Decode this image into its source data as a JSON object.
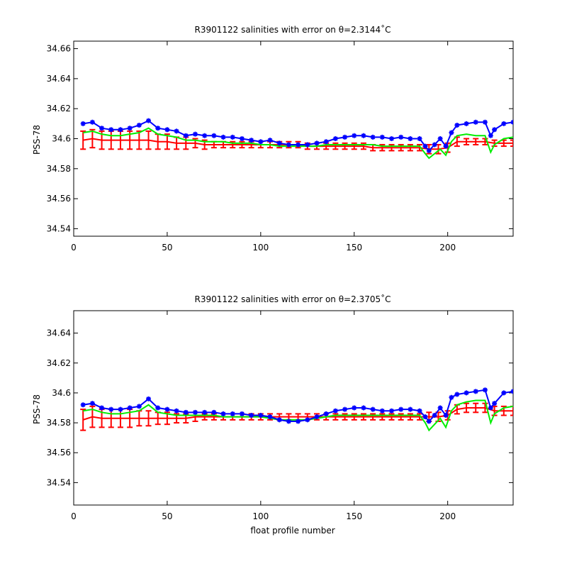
{
  "chart_data": [
    {
      "type": "line",
      "title": "R3901122 salinities with error on θ=2.3144˚C",
      "xlabel": "",
      "ylabel": "PSS-78",
      "xlim": [
        0,
        235
      ],
      "ylim": [
        34.535,
        34.665
      ],
      "xticks": [
        "0",
        "50",
        "100",
        "150",
        "200"
      ],
      "yticks": [
        "34.54",
        "34.56",
        "34.58",
        "34.6",
        "34.62",
        "34.64",
        "34.66"
      ],
      "grid": false,
      "series": [
        {
          "color": "#0000ff",
          "marker": "star",
          "x": [
            5,
            10,
            15,
            20,
            25,
            30,
            35,
            40,
            45,
            50,
            55,
            60,
            65,
            70,
            75,
            80,
            85,
            90,
            95,
            100,
            105,
            110,
            115,
            120,
            125,
            130,
            135,
            140,
            145,
            150,
            155,
            160,
            165,
            170,
            175,
            180,
            185,
            188,
            190,
            193,
            196,
            199,
            202,
            205,
            210,
            215,
            220,
            223,
            225,
            230,
            235
          ],
          "values": [
            34.61,
            34.611,
            34.607,
            34.606,
            34.606,
            34.607,
            34.609,
            34.612,
            34.607,
            34.606,
            34.605,
            34.602,
            34.603,
            34.602,
            34.602,
            34.601,
            34.601,
            34.6,
            34.599,
            34.598,
            34.599,
            34.597,
            34.596,
            34.596,
            34.596,
            34.597,
            34.598,
            34.6,
            34.601,
            34.602,
            34.602,
            34.601,
            34.601,
            34.6,
            34.601,
            34.6,
            34.6,
            34.595,
            34.592,
            34.596,
            34.6,
            34.595,
            34.604,
            34.609,
            34.61,
            34.611,
            34.611,
            34.602,
            34.606,
            34.61,
            34.611
          ]
        },
        {
          "color": "#00ee00",
          "marker": "",
          "x": [
            5,
            10,
            15,
            20,
            25,
            30,
            35,
            40,
            45,
            50,
            55,
            60,
            65,
            70,
            75,
            80,
            85,
            90,
            95,
            100,
            105,
            110,
            115,
            120,
            125,
            130,
            135,
            140,
            145,
            150,
            155,
            160,
            165,
            170,
            175,
            180,
            185,
            188,
            190,
            193,
            196,
            199,
            202,
            205,
            210,
            215,
            220,
            223,
            225,
            230,
            235
          ],
          "values": [
            34.604,
            34.605,
            34.603,
            34.602,
            34.602,
            34.603,
            34.604,
            34.607,
            34.603,
            34.602,
            34.601,
            34.599,
            34.599,
            34.598,
            34.598,
            34.598,
            34.597,
            34.597,
            34.597,
            34.596,
            34.596,
            34.595,
            34.595,
            34.595,
            34.595,
            34.595,
            34.596,
            34.596,
            34.596,
            34.596,
            34.596,
            34.596,
            34.595,
            34.595,
            34.595,
            34.595,
            34.595,
            34.59,
            34.587,
            34.59,
            34.593,
            34.589,
            34.598,
            34.602,
            34.603,
            34.602,
            34.602,
            34.591,
            34.596,
            34.6,
            34.601
          ]
        },
        {
          "color": "#ff0000",
          "marker": "errorbar",
          "x": [
            5,
            10,
            15,
            20,
            25,
            30,
            35,
            40,
            45,
            50,
            55,
            60,
            65,
            70,
            75,
            80,
            85,
            90,
            95,
            100,
            105,
            110,
            115,
            120,
            125,
            130,
            135,
            140,
            145,
            150,
            155,
            160,
            165,
            170,
            175,
            180,
            185,
            190,
            195,
            200,
            205,
            210,
            215,
            220,
            225,
            230,
            235
          ],
          "values": [
            34.599,
            34.6,
            34.599,
            34.599,
            34.599,
            34.599,
            34.599,
            34.599,
            34.598,
            34.598,
            34.597,
            34.597,
            34.597,
            34.596,
            34.596,
            34.596,
            34.596,
            34.596,
            34.596,
            34.596,
            34.596,
            34.596,
            34.596,
            34.596,
            34.595,
            34.595,
            34.595,
            34.595,
            34.595,
            34.595,
            34.595,
            34.594,
            34.594,
            34.594,
            34.594,
            34.594,
            34.594,
            34.593,
            34.593,
            34.594,
            34.598,
            34.598,
            34.598,
            34.598,
            34.597,
            34.597,
            34.597
          ],
          "errors": [
            0.006,
            0.006,
            0.006,
            0.006,
            0.006,
            0.006,
            0.006,
            0.006,
            0.005,
            0.005,
            0.004,
            0.004,
            0.003,
            0.003,
            0.002,
            0.002,
            0.002,
            0.002,
            0.002,
            0.002,
            0.002,
            0.002,
            0.002,
            0.002,
            0.002,
            0.002,
            0.002,
            0.002,
            0.002,
            0.002,
            0.002,
            0.002,
            0.002,
            0.002,
            0.002,
            0.002,
            0.002,
            0.003,
            0.003,
            0.003,
            0.003,
            0.002,
            0.002,
            0.002,
            0.002,
            0.002,
            0.002
          ]
        }
      ]
    },
    {
      "type": "line",
      "title": "R3901122 salinities with error on θ=2.3705˚C",
      "xlabel": "float profile number",
      "ylabel": "PSS-78",
      "xlim": [
        0,
        235
      ],
      "ylim": [
        34.525,
        34.655
      ],
      "xticks": [
        "0",
        "50",
        "100",
        "150",
        "200"
      ],
      "yticks": [
        "34.54",
        "34.56",
        "34.58",
        "34.6",
        "34.62",
        "34.64"
      ],
      "grid": false,
      "series": [
        {
          "color": "#0000ff",
          "marker": "star",
          "x": [
            5,
            10,
            15,
            20,
            25,
            30,
            35,
            40,
            45,
            50,
            55,
            60,
            65,
            70,
            75,
            80,
            85,
            90,
            95,
            100,
            105,
            110,
            115,
            120,
            125,
            130,
            135,
            140,
            145,
            150,
            155,
            160,
            165,
            170,
            175,
            180,
            185,
            188,
            190,
            193,
            196,
            199,
            202,
            205,
            210,
            215,
            220,
            223,
            225,
            230,
            235
          ],
          "values": [
            34.592,
            34.593,
            34.59,
            34.589,
            34.589,
            34.59,
            34.591,
            34.596,
            34.59,
            34.589,
            34.588,
            34.587,
            34.587,
            34.587,
            34.587,
            34.586,
            34.586,
            34.586,
            34.585,
            34.585,
            34.584,
            34.582,
            34.581,
            34.581,
            34.582,
            34.584,
            34.586,
            34.588,
            34.589,
            34.59,
            34.59,
            34.589,
            34.588,
            34.588,
            34.589,
            34.589,
            34.588,
            34.584,
            34.581,
            34.585,
            34.59,
            34.585,
            34.597,
            34.599,
            34.6,
            34.601,
            34.602,
            34.59,
            34.593,
            34.6,
            34.601
          ]
        },
        {
          "color": "#00ee00",
          "marker": "",
          "x": [
            5,
            10,
            15,
            20,
            25,
            30,
            35,
            40,
            45,
            50,
            55,
            60,
            65,
            70,
            75,
            80,
            85,
            90,
            95,
            100,
            105,
            110,
            115,
            120,
            125,
            130,
            135,
            140,
            145,
            150,
            155,
            160,
            165,
            170,
            175,
            180,
            185,
            188,
            190,
            193,
            196,
            199,
            202,
            205,
            210,
            215,
            220,
            223,
            225,
            230,
            235
          ],
          "values": [
            34.588,
            34.589,
            34.587,
            34.586,
            34.586,
            34.587,
            34.588,
            34.592,
            34.587,
            34.586,
            34.585,
            34.585,
            34.585,
            34.585,
            34.585,
            34.584,
            34.584,
            34.584,
            34.584,
            34.584,
            34.583,
            34.582,
            34.582,
            34.582,
            34.582,
            34.583,
            34.584,
            34.585,
            34.585,
            34.585,
            34.585,
            34.585,
            34.585,
            34.585,
            34.585,
            34.585,
            34.585,
            34.58,
            34.575,
            34.579,
            34.583,
            34.577,
            34.588,
            34.592,
            34.594,
            34.595,
            34.595,
            34.58,
            34.586,
            34.59,
            34.591
          ]
        },
        {
          "color": "#ff0000",
          "marker": "errorbar",
          "x": [
            5,
            10,
            15,
            20,
            25,
            30,
            35,
            40,
            45,
            50,
            55,
            60,
            65,
            70,
            75,
            80,
            85,
            90,
            95,
            100,
            105,
            110,
            115,
            120,
            125,
            130,
            135,
            140,
            145,
            150,
            155,
            160,
            165,
            170,
            175,
            180,
            185,
            190,
            195,
            200,
            205,
            210,
            215,
            220,
            225,
            230,
            235
          ],
          "values": [
            34.582,
            34.584,
            34.583,
            34.583,
            34.583,
            34.583,
            34.583,
            34.583,
            34.583,
            34.583,
            34.583,
            34.583,
            34.584,
            34.584,
            34.584,
            34.584,
            34.584,
            34.584,
            34.584,
            34.584,
            34.584,
            34.584,
            34.584,
            34.584,
            34.584,
            34.584,
            34.584,
            34.584,
            34.584,
            34.584,
            34.584,
            34.584,
            34.584,
            34.584,
            34.584,
            34.584,
            34.584,
            34.584,
            34.584,
            34.585,
            34.589,
            34.59,
            34.59,
            34.59,
            34.588,
            34.588,
            34.588
          ],
          "errors": [
            0.007,
            0.007,
            0.006,
            0.006,
            0.006,
            0.006,
            0.005,
            0.005,
            0.004,
            0.004,
            0.003,
            0.003,
            0.003,
            0.002,
            0.002,
            0.002,
            0.002,
            0.002,
            0.002,
            0.002,
            0.002,
            0.002,
            0.002,
            0.002,
            0.002,
            0.002,
            0.002,
            0.002,
            0.002,
            0.002,
            0.002,
            0.002,
            0.002,
            0.002,
            0.002,
            0.002,
            0.002,
            0.003,
            0.003,
            0.003,
            0.003,
            0.003,
            0.003,
            0.003,
            0.003,
            0.003,
            0.003
          ]
        }
      ]
    }
  ]
}
